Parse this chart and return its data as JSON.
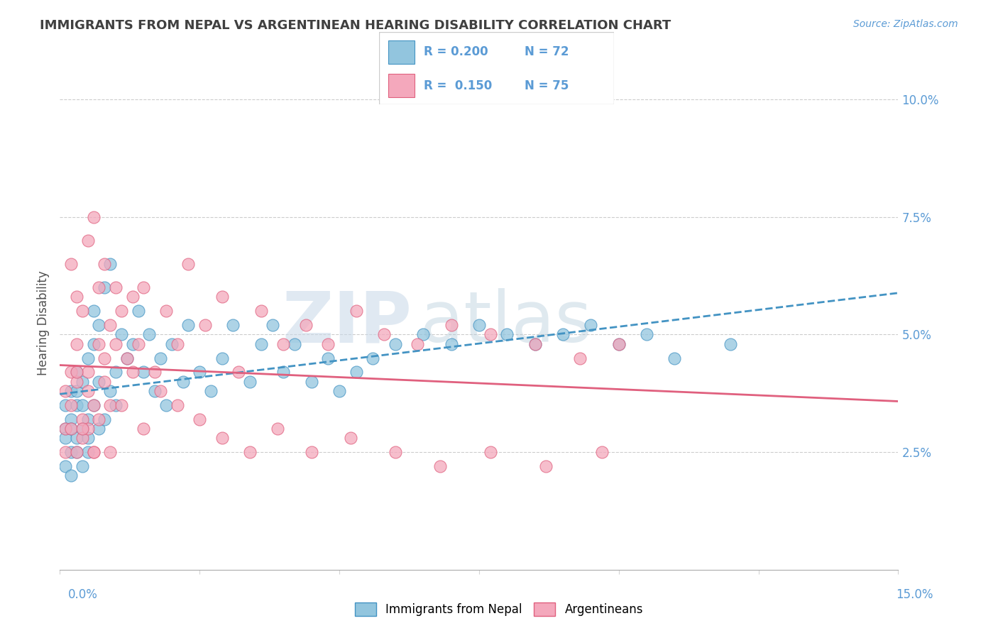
{
  "title": "IMMIGRANTS FROM NEPAL VS ARGENTINEAN HEARING DISABILITY CORRELATION CHART",
  "source": "Source: ZipAtlas.com",
  "ylabel": "Hearing Disability",
  "y_ticks": [
    0.0,
    0.025,
    0.05,
    0.075,
    0.1
  ],
  "y_tick_labels": [
    "",
    "2.5%",
    "5.0%",
    "7.5%",
    "10.0%"
  ],
  "x_lim": [
    0.0,
    0.15
  ],
  "y_lim": [
    0.0,
    0.105
  ],
  "legend_r1": "R = 0.200",
  "legend_n1": "N = 72",
  "legend_r2": "R =  0.150",
  "legend_n2": "N = 75",
  "color_blue": "#92c5de",
  "color_pink": "#f4a8bc",
  "color_blue_dark": "#4393c3",
  "color_pink_dark": "#e0607e",
  "watermark_zip": "ZIP",
  "watermark_atlas": "atlas",
  "title_color": "#404040",
  "axis_color": "#5b9bd5",
  "nepal_x": [
    0.001,
    0.001,
    0.001,
    0.001,
    0.002,
    0.002,
    0.002,
    0.002,
    0.002,
    0.003,
    0.003,
    0.003,
    0.003,
    0.003,
    0.004,
    0.004,
    0.004,
    0.004,
    0.005,
    0.005,
    0.005,
    0.005,
    0.006,
    0.006,
    0.006,
    0.007,
    0.007,
    0.007,
    0.008,
    0.008,
    0.009,
    0.009,
    0.01,
    0.01,
    0.011,
    0.012,
    0.013,
    0.014,
    0.015,
    0.016,
    0.017,
    0.018,
    0.019,
    0.02,
    0.022,
    0.023,
    0.025,
    0.027,
    0.029,
    0.031,
    0.034,
    0.036,
    0.038,
    0.04,
    0.042,
    0.045,
    0.048,
    0.05,
    0.053,
    0.056,
    0.06,
    0.065,
    0.07,
    0.075,
    0.08,
    0.085,
    0.09,
    0.095,
    0.1,
    0.105,
    0.11,
    0.12
  ],
  "nepal_y": [
    0.03,
    0.035,
    0.028,
    0.022,
    0.032,
    0.038,
    0.025,
    0.03,
    0.02,
    0.028,
    0.035,
    0.042,
    0.025,
    0.038,
    0.03,
    0.022,
    0.035,
    0.04,
    0.028,
    0.045,
    0.032,
    0.025,
    0.055,
    0.035,
    0.048,
    0.04,
    0.03,
    0.052,
    0.032,
    0.06,
    0.038,
    0.065,
    0.042,
    0.035,
    0.05,
    0.045,
    0.048,
    0.055,
    0.042,
    0.05,
    0.038,
    0.045,
    0.035,
    0.048,
    0.04,
    0.052,
    0.042,
    0.038,
    0.045,
    0.052,
    0.04,
    0.048,
    0.052,
    0.042,
    0.048,
    0.04,
    0.045,
    0.038,
    0.042,
    0.045,
    0.048,
    0.05,
    0.048,
    0.052,
    0.05,
    0.048,
    0.05,
    0.052,
    0.048,
    0.05,
    0.045,
    0.048
  ],
  "argentina_x": [
    0.001,
    0.001,
    0.001,
    0.002,
    0.002,
    0.002,
    0.003,
    0.003,
    0.003,
    0.003,
    0.004,
    0.004,
    0.004,
    0.005,
    0.005,
    0.005,
    0.006,
    0.006,
    0.006,
    0.007,
    0.007,
    0.008,
    0.008,
    0.009,
    0.009,
    0.01,
    0.011,
    0.012,
    0.013,
    0.014,
    0.015,
    0.017,
    0.019,
    0.021,
    0.023,
    0.026,
    0.029,
    0.032,
    0.036,
    0.04,
    0.044,
    0.048,
    0.053,
    0.058,
    0.064,
    0.07,
    0.077,
    0.085,
    0.093,
    0.1,
    0.002,
    0.003,
    0.004,
    0.005,
    0.006,
    0.007,
    0.008,
    0.009,
    0.01,
    0.011,
    0.013,
    0.015,
    0.018,
    0.021,
    0.025,
    0.029,
    0.034,
    0.039,
    0.045,
    0.052,
    0.06,
    0.068,
    0.077,
    0.087,
    0.097
  ],
  "argentina_y": [
    0.03,
    0.038,
    0.025,
    0.065,
    0.042,
    0.03,
    0.058,
    0.04,
    0.025,
    0.048,
    0.032,
    0.055,
    0.028,
    0.042,
    0.07,
    0.03,
    0.035,
    0.075,
    0.025,
    0.048,
    0.06,
    0.065,
    0.04,
    0.052,
    0.025,
    0.06,
    0.055,
    0.045,
    0.058,
    0.048,
    0.06,
    0.042,
    0.055,
    0.048,
    0.065,
    0.052,
    0.058,
    0.042,
    0.055,
    0.048,
    0.052,
    0.048,
    0.055,
    0.05,
    0.048,
    0.052,
    0.05,
    0.048,
    0.045,
    0.048,
    0.035,
    0.042,
    0.03,
    0.038,
    0.025,
    0.032,
    0.045,
    0.035,
    0.048,
    0.035,
    0.042,
    0.03,
    0.038,
    0.035,
    0.032,
    0.028,
    0.025,
    0.03,
    0.025,
    0.028,
    0.025,
    0.022,
    0.025,
    0.022,
    0.025
  ]
}
